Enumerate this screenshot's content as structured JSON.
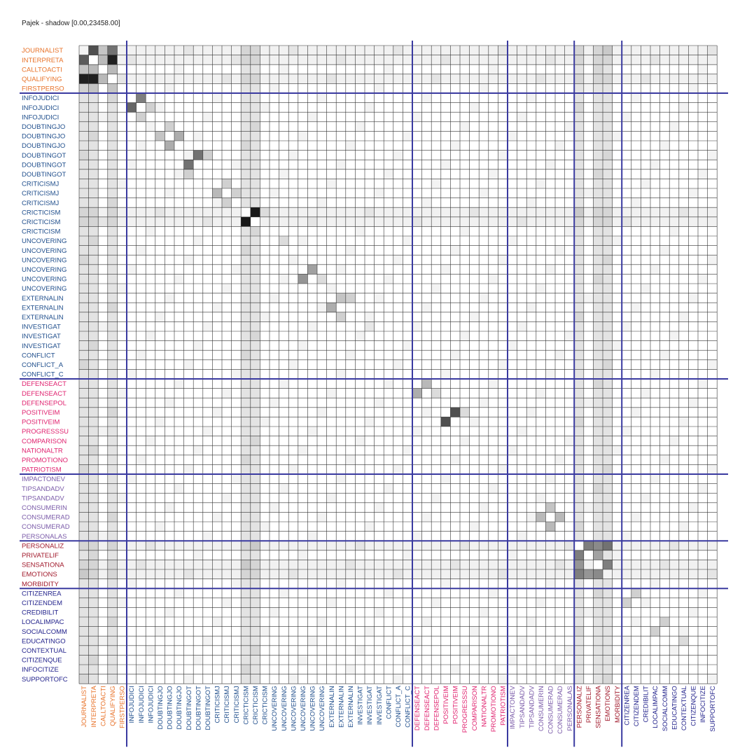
{
  "title": "Pajek - shadow [0.00,23458.00]",
  "colors": {
    "orange": "#e8732a",
    "blue": "#1f4e8c",
    "magenta": "#e0226f",
    "purple": "#7a5aa8",
    "darkred": "#a0182a",
    "navy": "#23238c",
    "partition_line": "#3a3aa0",
    "grid": "#333333"
  },
  "labels": [
    "JOURNALIST",
    "INTERPRETA",
    "CALLTOACTI",
    "QUALIFYING",
    "FIRSTPERSO",
    "INFOJUDICI",
    "INFOJUDICI",
    "INFOJUDICI",
    "DOUBTINGJO",
    "DOUBTINGJO",
    "DOUBTINGJO",
    "DOUBTINGOT",
    "DOUBTINGOT",
    "DOUBTINGOT",
    "CRITICISMJ",
    "CRITICISMJ",
    "CRITICISMJ",
    "CRICTICISM",
    "CRICTICISM",
    "CRICTICISM",
    "UNCOVERING",
    "UNCOVERING",
    "UNCOVERING",
    "UNCOVERING",
    "UNCOVERING",
    "UNCOVERING",
    "EXTERNALIN",
    "EXTERNALIN",
    "EXTERNALIN",
    "INVESTIGAT",
    "INVESTIGAT",
    "INVESTIGAT",
    "CONFLICT",
    "CONFLICT_A",
    "CONFLICT_C",
    "DEFENSEACT",
    "DEFENSEACT",
    "DEFENSEPOL",
    "POSITIVEIM",
    "POSITIVEIM",
    "PROGRESSSU",
    "COMPARISON",
    "NATIONALTR",
    "PROMOTIONO",
    "PATRIOTISM",
    "IMPACTONEV",
    "TIPSANDADV",
    "TIPSANDADV",
    "CONSUMERIN",
    "CONSUMERAD",
    "CONSUMERAD",
    "PERSONALAS",
    "PERSONALIZ",
    "PRIVATELIF",
    "SENSATIONA",
    "EMOTIONS",
    "MORBIDITY",
    "CITIZENREA",
    "CITIZENDEM",
    "CREDIBILIT",
    "LOCALIMPAC",
    "SOCIALCOMM",
    "EDUCATINGO",
    "CONTEXTUAL",
    "CITIZENQUE",
    "INFOCITIZE",
    "SUPPORTOFC"
  ],
  "groups": [
    {
      "size": 5,
      "color": "orange"
    },
    {
      "size": 30,
      "color": "blue"
    },
    {
      "size": 10,
      "color": "magenta"
    },
    {
      "size": 7,
      "color": "purple"
    },
    {
      "size": 5,
      "color": "darkred"
    },
    {
      "size": 10,
      "color": "navy"
    }
  ],
  "matrix_shading": {
    "scale": "white (0) to black (1)",
    "cells": [
      [
        0,
        1,
        0.75
      ],
      [
        0,
        2,
        0.25
      ],
      [
        0,
        3,
        0.6
      ],
      [
        1,
        0,
        0.7
      ],
      [
        1,
        2,
        0.3
      ],
      [
        1,
        3,
        0.95
      ],
      [
        2,
        0,
        0.25
      ],
      [
        2,
        1,
        0.3
      ],
      [
        2,
        3,
        0.3
      ],
      [
        3,
        0,
        0.95
      ],
      [
        3,
        1,
        0.95
      ],
      [
        3,
        2,
        0.3
      ],
      [
        4,
        0,
        0.2
      ],
      [
        4,
        1,
        0.25
      ],
      [
        4,
        3,
        0.25
      ],
      [
        5,
        6,
        0.55
      ],
      [
        6,
        5,
        0.65
      ],
      [
        6,
        7,
        0.2
      ],
      [
        7,
        6,
        0.2
      ],
      [
        8,
        9,
        0.2
      ],
      [
        9,
        8,
        0.25
      ],
      [
        9,
        10,
        0.35
      ],
      [
        10,
        9,
        0.35
      ],
      [
        11,
        12,
        0.6
      ],
      [
        12,
        11,
        0.6
      ],
      [
        11,
        13,
        0.2
      ],
      [
        13,
        11,
        0.2
      ],
      [
        14,
        15,
        0.2
      ],
      [
        15,
        14,
        0.3
      ],
      [
        15,
        16,
        0.2
      ],
      [
        16,
        15,
        0.2
      ],
      [
        17,
        18,
        0.98
      ],
      [
        18,
        17,
        0.98
      ],
      [
        17,
        19,
        0.15
      ],
      [
        20,
        21,
        0.15
      ],
      [
        23,
        24,
        0.4
      ],
      [
        24,
        23,
        0.45
      ],
      [
        24,
        25,
        0.15
      ],
      [
        26,
        27,
        0.25
      ],
      [
        27,
        26,
        0.35
      ],
      [
        26,
        28,
        0.2
      ],
      [
        28,
        27,
        0.2
      ],
      [
        29,
        30,
        0.1
      ],
      [
        35,
        36,
        0.3
      ],
      [
        36,
        35,
        0.35
      ],
      [
        36,
        37,
        0.15
      ],
      [
        38,
        39,
        0.75
      ],
      [
        39,
        38,
        0.75
      ],
      [
        38,
        40,
        0.15
      ],
      [
        48,
        49,
        0.25
      ],
      [
        49,
        48,
        0.3
      ],
      [
        49,
        50,
        0.3
      ],
      [
        50,
        49,
        0.3
      ],
      [
        52,
        53,
        0.55
      ],
      [
        53,
        52,
        0.55
      ],
      [
        52,
        54,
        0.5
      ],
      [
        54,
        52,
        0.45
      ],
      [
        53,
        54,
        0.4
      ],
      [
        54,
        55,
        0.55
      ],
      [
        55,
        54,
        0.5
      ],
      [
        55,
        53,
        0.45
      ],
      [
        52,
        55,
        0.6
      ],
      [
        55,
        52,
        0.55
      ],
      [
        57,
        58,
        0.2
      ],
      [
        58,
        57,
        0.2
      ],
      [
        60,
        61,
        0.2
      ],
      [
        61,
        60,
        0.2
      ],
      [
        62,
        63,
        0.15
      ]
    ]
  }
}
